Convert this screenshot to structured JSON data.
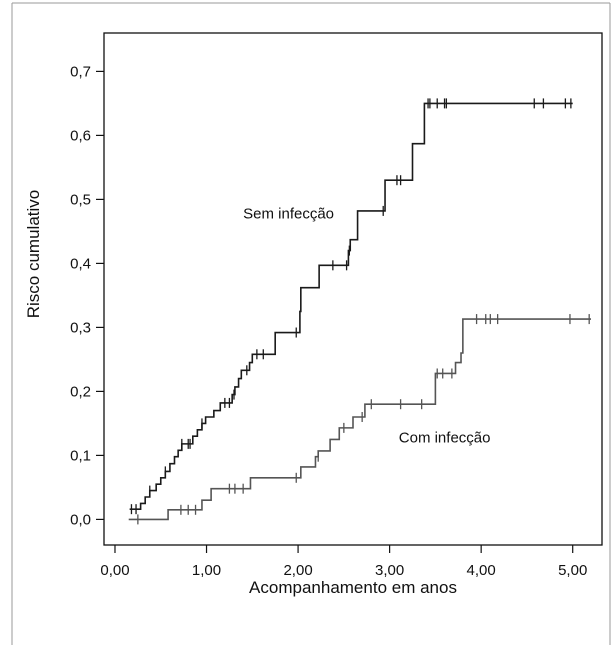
{
  "chart_data": {
    "type": "line",
    "title": "",
    "xlabel": "Acompanhamento em anos",
    "ylabel": "Risco cumulativo",
    "xlim": [
      -0.12,
      5.32
    ],
    "ylim": [
      -0.04,
      0.76
    ],
    "x_ticks": [
      0,
      1,
      2,
      3,
      4,
      5
    ],
    "x_tick_labels": [
      "0,00",
      "1,00",
      "2,00",
      "3,00",
      "4,00",
      "5,00"
    ],
    "y_ticks": [
      0,
      0.1,
      0.2,
      0.3,
      0.4,
      0.5,
      0.6,
      0.7
    ],
    "y_tick_labels": [
      "0,0",
      "0,1",
      "0,2",
      "0,3",
      "0,4",
      "0,5",
      "0,6",
      "0,7"
    ],
    "grid": false,
    "legend": "none",
    "step": true,
    "series": [
      {
        "name": "Sem infecção",
        "color": "#1a1a1a",
        "label_at": [
          1.4,
          0.47
        ],
        "points": [
          [
            0.16,
            0.016
          ],
          [
            0.28,
            0.025
          ],
          [
            0.33,
            0.035
          ],
          [
            0.38,
            0.045
          ],
          [
            0.45,
            0.055
          ],
          [
            0.5,
            0.065
          ],
          [
            0.55,
            0.075
          ],
          [
            0.6,
            0.087
          ],
          [
            0.65,
            0.098
          ],
          [
            0.69,
            0.108
          ],
          [
            0.73,
            0.118
          ],
          [
            0.85,
            0.13
          ],
          [
            0.9,
            0.14
          ],
          [
            0.95,
            0.15
          ],
          [
            0.99,
            0.16
          ],
          [
            1.08,
            0.17
          ],
          [
            1.15,
            0.182
          ],
          [
            1.28,
            0.195
          ],
          [
            1.31,
            0.207
          ],
          [
            1.35,
            0.22
          ],
          [
            1.38,
            0.233
          ],
          [
            1.47,
            0.245
          ],
          [
            1.5,
            0.258
          ],
          [
            1.75,
            0.292
          ],
          [
            2.02,
            0.325
          ],
          [
            2.03,
            0.362
          ],
          [
            2.23,
            0.397
          ],
          [
            2.55,
            0.42
          ],
          [
            2.57,
            0.437
          ],
          [
            2.65,
            0.482
          ],
          [
            2.95,
            0.53
          ],
          [
            3.25,
            0.587
          ],
          [
            3.38,
            0.65
          ],
          [
            5.0,
            0.65
          ]
        ],
        "censored": [
          [
            0.18,
            0.016
          ],
          [
            0.23,
            0.016
          ],
          [
            0.38,
            0.045
          ],
          [
            0.55,
            0.075
          ],
          [
            0.73,
            0.118
          ],
          [
            0.8,
            0.118
          ],
          [
            0.82,
            0.118
          ],
          [
            0.95,
            0.15
          ],
          [
            1.2,
            0.182
          ],
          [
            1.25,
            0.182
          ],
          [
            1.3,
            0.195
          ],
          [
            1.44,
            0.233
          ],
          [
            1.55,
            0.258
          ],
          [
            1.62,
            0.258
          ],
          [
            1.98,
            0.292
          ],
          [
            2.38,
            0.397
          ],
          [
            2.53,
            0.397
          ],
          [
            2.56,
            0.42
          ],
          [
            2.93,
            0.482
          ],
          [
            3.08,
            0.53
          ],
          [
            3.12,
            0.53
          ],
          [
            3.42,
            0.65
          ],
          [
            3.44,
            0.65
          ],
          [
            3.52,
            0.65
          ],
          [
            3.6,
            0.65
          ],
          [
            3.62,
            0.65
          ],
          [
            4.58,
            0.65
          ],
          [
            4.68,
            0.65
          ],
          [
            4.92,
            0.65
          ],
          [
            4.98,
            0.65
          ]
        ]
      },
      {
        "name": "Com infecção",
        "color": "#555555",
        "label_at": [
          3.1,
          0.12
        ],
        "points": [
          [
            0.15,
            0.0
          ],
          [
            0.57,
            0.0
          ],
          [
            0.58,
            0.015
          ],
          [
            0.95,
            0.03
          ],
          [
            1.05,
            0.048
          ],
          [
            1.48,
            0.065
          ],
          [
            2.03,
            0.082
          ],
          [
            2.19,
            0.098
          ],
          [
            2.22,
            0.107
          ],
          [
            2.35,
            0.125
          ],
          [
            2.45,
            0.143
          ],
          [
            2.6,
            0.16
          ],
          [
            2.73,
            0.18
          ],
          [
            3.5,
            0.228
          ],
          [
            3.72,
            0.245
          ],
          [
            3.78,
            0.26
          ],
          [
            3.8,
            0.313
          ],
          [
            5.2,
            0.313
          ]
        ],
        "censored": [
          [
            0.25,
            0.0
          ],
          [
            0.72,
            0.015
          ],
          [
            0.8,
            0.015
          ],
          [
            0.88,
            0.015
          ],
          [
            1.25,
            0.048
          ],
          [
            1.31,
            0.048
          ],
          [
            1.4,
            0.048
          ],
          [
            1.98,
            0.065
          ],
          [
            2.22,
            0.098
          ],
          [
            2.5,
            0.143
          ],
          [
            2.7,
            0.16
          ],
          [
            2.8,
            0.18
          ],
          [
            3.12,
            0.18
          ],
          [
            3.35,
            0.18
          ],
          [
            3.52,
            0.228
          ],
          [
            3.58,
            0.228
          ],
          [
            3.68,
            0.228
          ],
          [
            3.95,
            0.313
          ],
          [
            4.05,
            0.313
          ],
          [
            4.1,
            0.313
          ],
          [
            4.18,
            0.313
          ],
          [
            4.97,
            0.313
          ],
          [
            5.18,
            0.313
          ]
        ]
      }
    ]
  }
}
